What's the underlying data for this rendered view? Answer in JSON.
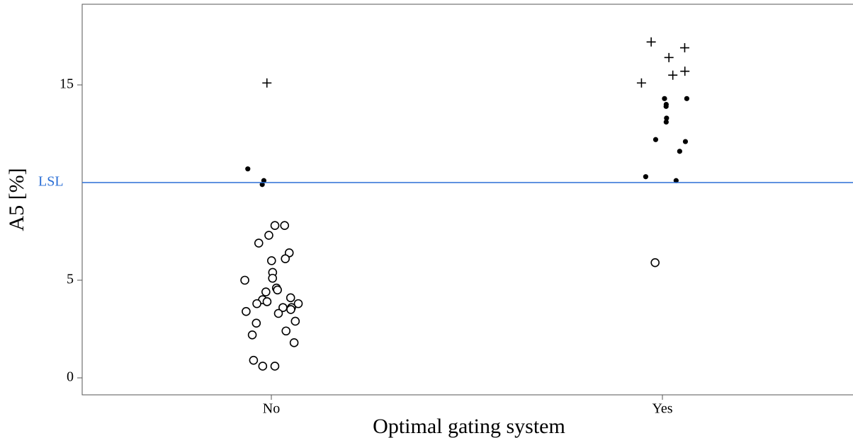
{
  "chart_data": {
    "type": "scatter",
    "xlabel": "Optimal gating system",
    "ylabel": "A5 [%]",
    "categories": [
      "No",
      "Yes"
    ],
    "ylim": [
      -0.8,
      19
    ],
    "yticks": [
      0,
      5,
      15
    ],
    "reference_line": {
      "label": "LSL",
      "value": 10,
      "color": "#2b6fd6"
    },
    "grid": false,
    "legend": "none",
    "series": [
      {
        "marker": "open-circle",
        "points": [
          {
            "x": "No",
            "y": 7.8
          },
          {
            "x": "No",
            "y": 7.8
          },
          {
            "x": "No",
            "y": 7.3
          },
          {
            "x": "No",
            "y": 6.9
          },
          {
            "x": "No",
            "y": 6.4
          },
          {
            "x": "No",
            "y": 6.1
          },
          {
            "x": "No",
            "y": 6.0
          },
          {
            "x": "No",
            "y": 5.4
          },
          {
            "x": "No",
            "y": 5.1
          },
          {
            "x": "No",
            "y": 5.0
          },
          {
            "x": "No",
            "y": 4.6
          },
          {
            "x": "No",
            "y": 4.5
          },
          {
            "x": "No",
            "y": 4.4
          },
          {
            "x": "No",
            "y": 4.1
          },
          {
            "x": "No",
            "y": 4.0
          },
          {
            "x": "No",
            "y": 3.9
          },
          {
            "x": "No",
            "y": 3.8
          },
          {
            "x": "No",
            "y": 3.8
          },
          {
            "x": "No",
            "y": 3.6
          },
          {
            "x": "No",
            "y": 3.6
          },
          {
            "x": "No",
            "y": 3.5
          },
          {
            "x": "No",
            "y": 3.4
          },
          {
            "x": "No",
            "y": 3.3
          },
          {
            "x": "No",
            "y": 2.9
          },
          {
            "x": "No",
            "y": 2.8
          },
          {
            "x": "No",
            "y": 2.4
          },
          {
            "x": "No",
            "y": 2.2
          },
          {
            "x": "No",
            "y": 1.8
          },
          {
            "x": "No",
            "y": 0.9
          },
          {
            "x": "No",
            "y": 0.6
          },
          {
            "x": "No",
            "y": 0.6
          },
          {
            "x": "Yes",
            "y": 5.9
          }
        ]
      },
      {
        "marker": "filled-dot",
        "points": [
          {
            "x": "No",
            "y": 10.7
          },
          {
            "x": "No",
            "y": 10.1
          },
          {
            "x": "No",
            "y": 9.9
          },
          {
            "x": "Yes",
            "y": 14.3
          },
          {
            "x": "Yes",
            "y": 14.3
          },
          {
            "x": "Yes",
            "y": 14.0
          },
          {
            "x": "Yes",
            "y": 13.9
          },
          {
            "x": "Yes",
            "y": 13.3
          },
          {
            "x": "Yes",
            "y": 13.1
          },
          {
            "x": "Yes",
            "y": 12.2
          },
          {
            "x": "Yes",
            "y": 12.1
          },
          {
            "x": "Yes",
            "y": 11.6
          },
          {
            "x": "Yes",
            "y": 10.3
          },
          {
            "x": "Yes",
            "y": 10.1
          }
        ]
      },
      {
        "marker": "plus",
        "points": [
          {
            "x": "No",
            "y": 15.1
          },
          {
            "x": "Yes",
            "y": 17.2
          },
          {
            "x": "Yes",
            "y": 16.9
          },
          {
            "x": "Yes",
            "y": 16.4
          },
          {
            "x": "Yes",
            "y": 15.7
          },
          {
            "x": "Yes",
            "y": 15.5
          },
          {
            "x": "Yes",
            "y": 15.1
          }
        ]
      }
    ]
  }
}
